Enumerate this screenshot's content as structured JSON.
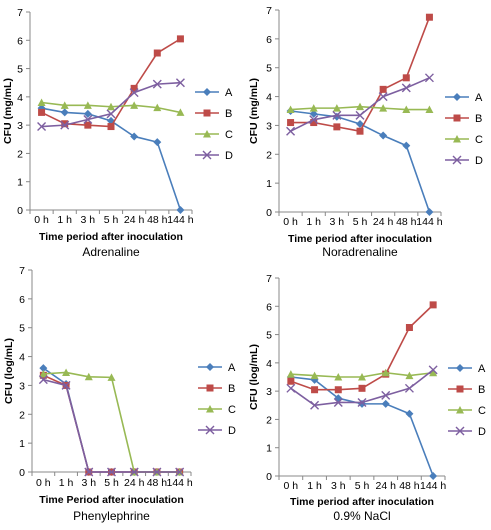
{
  "colors": {
    "A": "#4a7ebb",
    "B": "#be4b48",
    "C": "#98b954",
    "D": "#7d5fa0",
    "axis": "#888888",
    "text": "#000000"
  },
  "chart_data": [
    {
      "type": "line",
      "caption": "Adrenaline",
      "xlabel": "Time period after inoculation",
      "ylabel": "CFU (mg/mL)",
      "ylim": [
        0,
        7
      ],
      "yticks": [
        "0",
        "1",
        "2",
        "3",
        "4",
        "5",
        "6",
        "7"
      ],
      "categories": [
        "0 h",
        "1 h",
        "3 h",
        "5 h",
        "24 h",
        "48 h",
        "144 h"
      ],
      "legend": "right",
      "series": [
        {
          "name": "A",
          "marker": "diamond",
          "values": [
            3.6,
            3.45,
            3.4,
            3.15,
            2.6,
            2.4,
            0
          ]
        },
        {
          "name": "B",
          "marker": "square",
          "values": [
            3.45,
            3.05,
            3.0,
            2.95,
            4.3,
            5.55,
            6.05
          ]
        },
        {
          "name": "C",
          "marker": "triangle",
          "values": [
            3.8,
            3.7,
            3.7,
            3.65,
            3.7,
            3.62,
            3.45
          ]
        },
        {
          "name": "D",
          "marker": "x",
          "values": [
            2.95,
            3.0,
            3.2,
            3.4,
            4.15,
            4.45,
            4.5
          ]
        }
      ]
    },
    {
      "type": "line",
      "caption": "Noradrenaline",
      "xlabel": "Time period after inoculation",
      "ylabel": "CFU (mg/mL)",
      "ylim": [
        0,
        7
      ],
      "yticks": [
        "0",
        "1",
        "2",
        "3",
        "4",
        "5",
        "6",
        "7"
      ],
      "categories": [
        "0 h",
        "1 h",
        "3 h",
        "5 h",
        "24 h",
        "48 h",
        "144 h"
      ],
      "legend": "right",
      "series": [
        {
          "name": "A",
          "marker": "diamond",
          "values": [
            3.5,
            3.4,
            3.3,
            3.05,
            2.65,
            2.3,
            0
          ]
        },
        {
          "name": "B",
          "marker": "square",
          "values": [
            3.1,
            3.1,
            2.95,
            2.8,
            4.25,
            4.65,
            6.75
          ]
        },
        {
          "name": "C",
          "marker": "triangle",
          "values": [
            3.55,
            3.6,
            3.6,
            3.65,
            3.6,
            3.55,
            3.55
          ]
        },
        {
          "name": "D",
          "marker": "x",
          "values": [
            2.8,
            3.2,
            3.35,
            3.35,
            4.0,
            4.3,
            4.65
          ]
        }
      ]
    },
    {
      "type": "line",
      "caption": "Phenylephrine",
      "xlabel": "Time Period after inoculation",
      "ylabel": "CFU (log/mL)",
      "ylim": [
        0,
        7
      ],
      "yticks": [
        "0",
        "1",
        "2",
        "3",
        "4",
        "5",
        "6",
        "7"
      ],
      "categories": [
        "0 h",
        "1 h",
        "3 h",
        "5 h",
        "24 h",
        "48 h",
        "144 h"
      ],
      "legend": "right",
      "series": [
        {
          "name": "A",
          "marker": "diamond",
          "values": [
            3.6,
            3.05,
            0,
            0,
            0,
            0,
            0
          ]
        },
        {
          "name": "B",
          "marker": "square",
          "values": [
            3.35,
            3.0,
            0,
            0,
            0,
            0,
            0
          ]
        },
        {
          "name": "C",
          "marker": "triangle",
          "values": [
            3.4,
            3.45,
            3.3,
            3.28,
            0,
            0,
            0
          ]
        },
        {
          "name": "D",
          "marker": "x",
          "values": [
            3.2,
            3.0,
            0,
            0,
            0,
            0,
            0
          ]
        }
      ]
    },
    {
      "type": "line",
      "caption": "0.9% NaCl",
      "xlabel": "Time period after inoculation",
      "ylabel": "CFU (log/mL)",
      "ylim": [
        0,
        7
      ],
      "yticks": [
        "0",
        "1",
        "2",
        "3",
        "4",
        "5",
        "6",
        "7"
      ],
      "categories": [
        "0 h",
        "1 h",
        "3 h",
        "5 h",
        "24 h",
        "48 h",
        "144 h"
      ],
      "legend": "right",
      "series": [
        {
          "name": "A",
          "marker": "diamond",
          "values": [
            3.5,
            3.4,
            2.75,
            2.55,
            2.55,
            2.2,
            0
          ]
        },
        {
          "name": "B",
          "marker": "square",
          "values": [
            3.35,
            3.05,
            3.05,
            3.1,
            3.6,
            5.25,
            6.05
          ]
        },
        {
          "name": "C",
          "marker": "triangle",
          "values": [
            3.6,
            3.55,
            3.5,
            3.5,
            3.65,
            3.55,
            3.65
          ]
        },
        {
          "name": "D",
          "marker": "x",
          "values": [
            3.1,
            2.5,
            2.6,
            2.6,
            2.85,
            3.1,
            3.75
          ]
        }
      ]
    }
  ]
}
